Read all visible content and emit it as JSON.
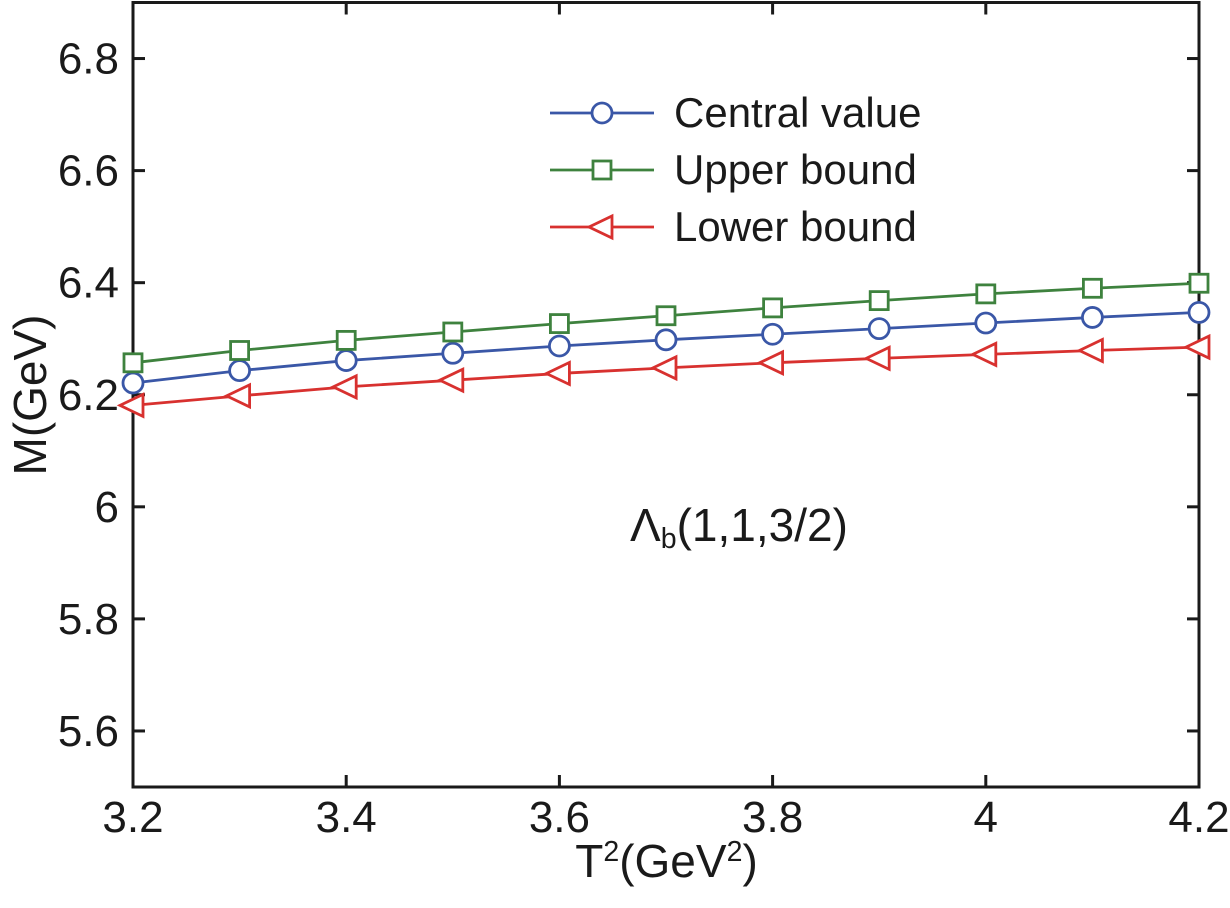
{
  "figure": {
    "background": "#ffffff",
    "axis_color": "#1a1a1a",
    "ylabel": "M(GeV)",
    "xlabel_parts": {
      "t": "T",
      "t_sup": "2",
      "gev_open": "(GeV",
      "gev_sup": "2",
      "close": ")"
    }
  },
  "legend": {
    "items": [
      {
        "label": "Central value",
        "marker": "circle",
        "color": "#3A57A7"
      },
      {
        "label": "Upper bound",
        "marker": "square",
        "color": "#3E823E"
      },
      {
        "label": "Lower bound",
        "marker": "triangle-left",
        "color": "#D8312F"
      }
    ]
  },
  "annotation": {
    "symbol": "Λ",
    "subscript": "b",
    "args": "(1,1,3/2)"
  },
  "chart_data": {
    "type": "line",
    "title": "",
    "xlabel": "T^2(GeV^2)",
    "ylabel": "M(GeV)",
    "xlim": [
      3.2,
      4.2
    ],
    "ylim": [
      5.5,
      6.9
    ],
    "x_tick_labels": [
      "3.2",
      "3.4",
      "3.6",
      "3.8",
      "4",
      "4.2"
    ],
    "x_tick_values": [
      3.2,
      3.4,
      3.6,
      3.8,
      4.0,
      4.2
    ],
    "y_tick_labels": [
      "5.6",
      "5.8",
      "6",
      "6.2",
      "6.4",
      "6.6",
      "6.8"
    ],
    "y_tick_values": [
      5.6,
      5.8,
      6.0,
      6.2,
      6.4,
      6.6,
      6.8
    ],
    "grid": false,
    "legend_position": "upper-left-inside",
    "x": [
      3.2,
      3.3,
      3.4,
      3.5,
      3.6,
      3.7,
      3.8,
      3.9,
      4.0,
      4.1,
      4.2
    ],
    "series": [
      {
        "name": "Central value",
        "marker": "circle",
        "color": "#3A57A7",
        "values": [
          6.221,
          6.243,
          6.261,
          6.274,
          6.287,
          6.298,
          6.308,
          6.318,
          6.328,
          6.338,
          6.347
        ]
      },
      {
        "name": "Upper bound",
        "marker": "square",
        "color": "#3E823E",
        "values": [
          6.257,
          6.279,
          6.297,
          6.312,
          6.327,
          6.341,
          6.355,
          6.368,
          6.38,
          6.39,
          6.399
        ]
      },
      {
        "name": "Lower bound",
        "marker": "triangle-left",
        "color": "#D8312F",
        "values": [
          6.181,
          6.198,
          6.214,
          6.226,
          6.238,
          6.248,
          6.257,
          6.265,
          6.272,
          6.279,
          6.285
        ]
      }
    ],
    "annotation": {
      "text": "Λ_b(1,1,3/2)",
      "x": 3.77,
      "y": 5.96
    }
  }
}
